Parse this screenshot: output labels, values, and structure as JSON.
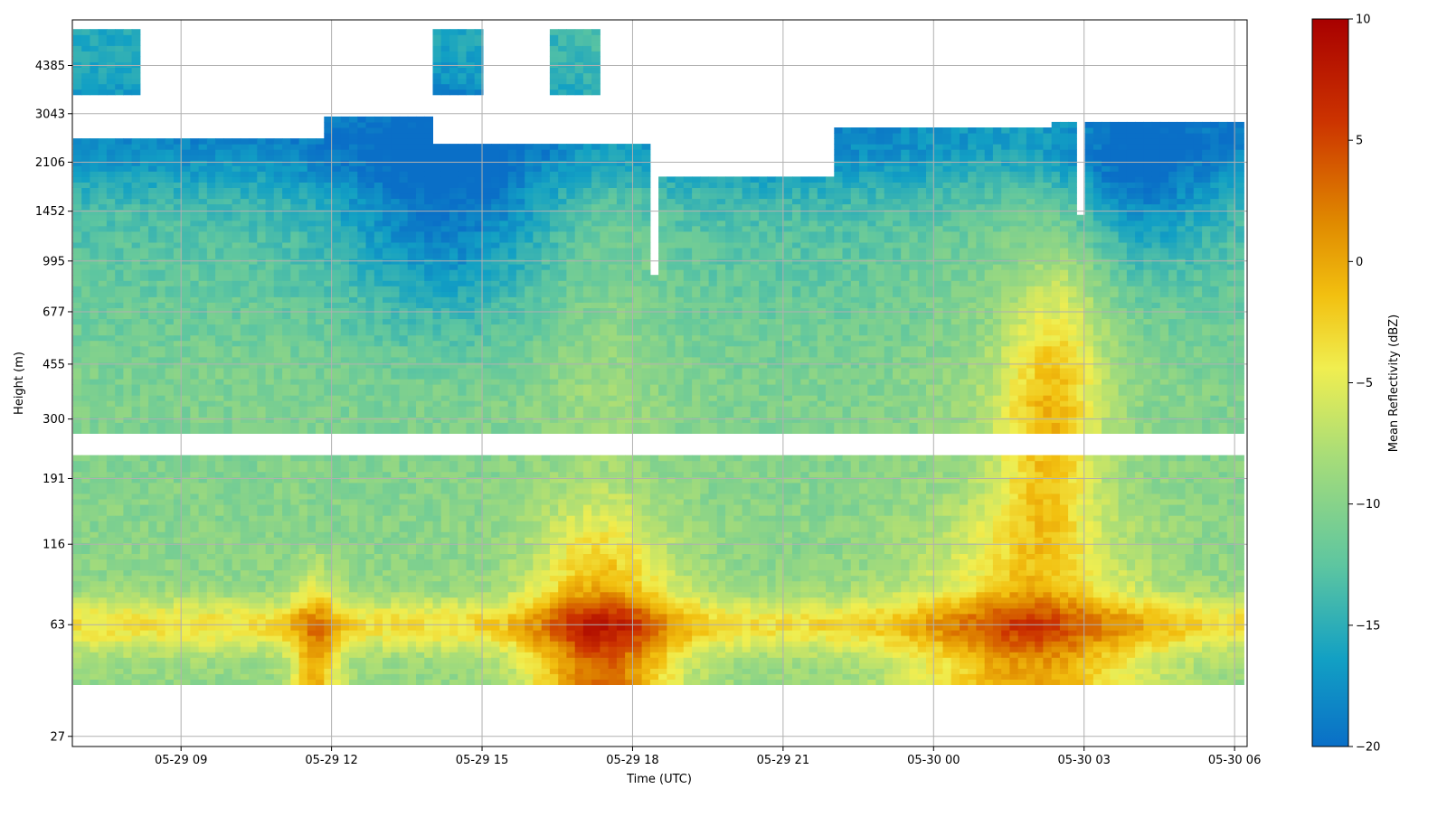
{
  "chart_data": {
    "type": "heatmap",
    "title": "",
    "xlabel": "Time (UTC)",
    "ylabel": "Height (m)",
    "x_ticks": [
      "05-29 09",
      "05-29 12",
      "05-29 15",
      "05-29 18",
      "05-29 21",
      "05-30 00",
      "05-30 03",
      "05-30 06"
    ],
    "y_ticks": [
      "27",
      "63",
      "116",
      "191",
      "300",
      "455",
      "677",
      "995",
      "1452",
      "2106",
      "3043",
      "4385"
    ],
    "y_scale": "log",
    "xlim": [
      "05-29 06:50",
      "05-30 06:15"
    ],
    "ylim": [
      25,
      6200
    ],
    "grid": true,
    "colorbar": {
      "label": "Mean Reflectivity (dBZ)",
      "ticks": [
        "10",
        "5",
        "0",
        "−5",
        "−10",
        "−15",
        "−20"
      ],
      "range": [
        -20,
        10
      ],
      "colormap": "blue-green-yellow-red",
      "colors": [
        "#0a6fc7",
        "#12a0c4",
        "#5ec6a0",
        "#a8dd78",
        "#f0ee50",
        "#f2c010",
        "#e08a00",
        "#cc3300",
        "#a80000"
      ]
    },
    "description_fields": {
      "gap_height_band_m": [
        230,
        265
      ],
      "signal_bottom_m": 40
    }
  }
}
